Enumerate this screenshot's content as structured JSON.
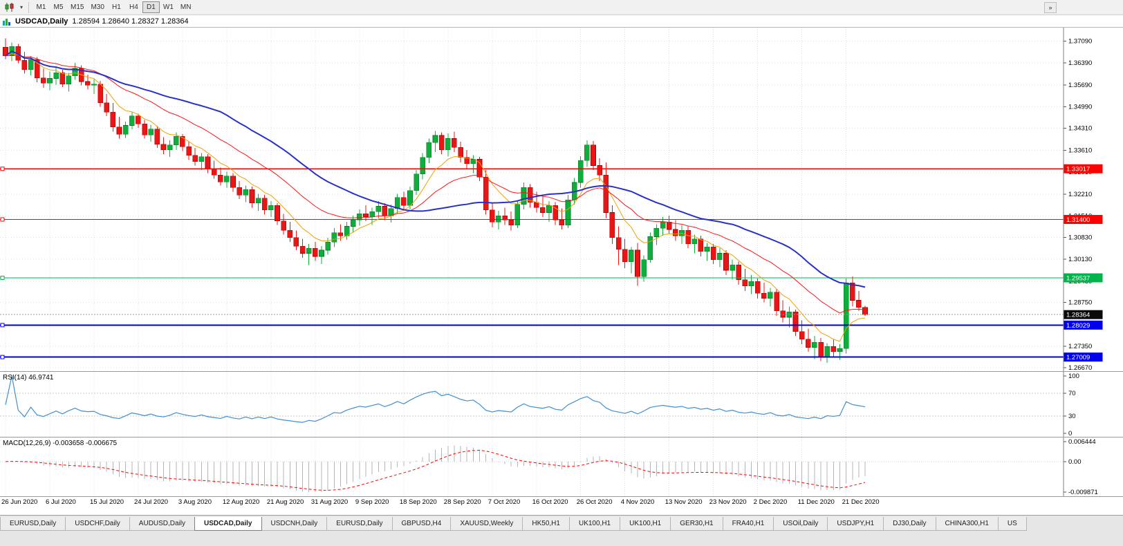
{
  "toolbar": {
    "timeframes": [
      "M1",
      "M5",
      "M15",
      "M30",
      "H1",
      "H4",
      "D1",
      "W1",
      "MN"
    ],
    "active_timeframe": "D1"
  },
  "chart": {
    "title": "USDCAD,Daily",
    "ohlc": "1.28594 1.28640 1.28327 1.28364"
  },
  "colors": {
    "candle_up": "#0ead3c",
    "candle_up_edge": "#077d27",
    "candle_down": "#ea1515",
    "candle_down_edge": "#9c0606",
    "ma_fast": "#f0a000",
    "ma_mid": "#ff1414",
    "ma_slow": "#2730c8",
    "grid": "#e0e0e0",
    "rsi_line": "#3f8fd2",
    "macd_hist": "#b4b4b4",
    "macd_signal": "#ff0000",
    "axis_text": "#000000",
    "separator": "#7f7f7f"
  },
  "tabs": {
    "active_index": 3,
    "items": [
      "EURUSD,Daily",
      "USDCHF,Daily",
      "AUDUSD,Daily",
      "USDCAD,Daily",
      "USDCNH,Daily",
      "EURUSD,Daily",
      "GBPUSD,H4",
      "XAUUSD,Weekly",
      "HK50,H1",
      "UK100,H1",
      "UK100,H1",
      "GER30,H1",
      "FRA40,H1",
      "USOil,Daily",
      "USDJPY,H1",
      "DJ30,Daily",
      "CHINA300,H1",
      "US"
    ]
  },
  "chart_data": {
    "type": "candlestick",
    "symbol": "USDCAD",
    "timeframe": "Daily",
    "ohlc_display": {
      "open": "1.28594",
      "high": "1.28640",
      "low": "1.28327",
      "close": "1.28364"
    },
    "ylim": [
      1.2656,
      1.3752
    ],
    "price_axis_ticks": [
      "1.37090",
      "1.36390",
      "1.35690",
      "1.34990",
      "1.34310",
      "1.33610",
      "1.32910",
      "1.32210",
      "1.31510",
      "1.30830",
      "1.30130",
      "1.29430",
      "1.28750",
      "1.28050",
      "1.27350",
      "1.26670"
    ],
    "date_tick_labels": [
      "26 Jun 2020",
      "6 Jul 2020",
      "15 Jul 2020",
      "24 Jul 2020",
      "3 Aug 2020",
      "12 Aug 2020",
      "21 Aug 2020",
      "31 Aug 2020",
      "9 Sep 2020",
      "18 Sep 2020",
      "28 Sep 2020",
      "7 Oct 2020",
      "16 Oct 2020",
      "26 Oct 2020",
      "4 Nov 2020",
      "13 Nov 2020",
      "23 Nov 2020",
      "2 Dec 2020",
      "11 Dec 2020",
      "21 Dec 2020"
    ],
    "date_tick_indices": [
      0,
      7,
      14,
      21,
      28,
      35,
      42,
      49,
      56,
      63,
      70,
      77,
      84,
      91,
      98,
      105,
      112,
      119,
      126,
      133
    ],
    "horizontal_lines": [
      {
        "value": 1.33017,
        "label": "1.33017",
        "color": "#ff0000",
        "width": 1.2
      },
      {
        "value": 1.314,
        "label": "1.31400",
        "color": "#ff0000",
        "width": 1.2
      },
      {
        "value": 1.29537,
        "label": "1.29537",
        "color": "#00b44b",
        "width": 1.4
      },
      {
        "value": 1.28029,
        "label": "1.28029",
        "color": "#0000ee",
        "width": 2
      },
      {
        "value": 1.27009,
        "label": "1.27009",
        "color": "#0000ee",
        "width": 2
      }
    ],
    "current_price": {
      "value": 1.28364,
      "label": "1.28364",
      "label_bg": "#0a0a0a"
    },
    "moving_averages": [
      {
        "name": "ma-fast",
        "type": "ema",
        "period": 8,
        "color": "#f0a000",
        "width": 1
      },
      {
        "name": "ma-mid",
        "type": "ema",
        "period": 21,
        "color": "#ff1414",
        "width": 1
      },
      {
        "name": "ma-slow",
        "type": "sma",
        "period": 35,
        "color": "#2730c8",
        "width": 2
      }
    ],
    "indicators": [
      {
        "name": "RSI",
        "label": "RSI(14) 46.9741",
        "period": 14,
        "value": 46.9741,
        "levels": [
          70,
          30
        ],
        "axis_labels": [
          "100",
          "70",
          "30",
          "0"
        ],
        "range": [
          0,
          100
        ]
      },
      {
        "name": "MACD",
        "label": "MACD(12,26,9) -0.003658 -0.006675",
        "params": [
          12,
          26,
          9
        ],
        "value": -0.003658,
        "signal_value": -0.006675,
        "axis_labels": [
          "0.006444",
          "0.00",
          "-0.009871"
        ],
        "range": [
          -0.009871,
          0.006444
        ]
      }
    ],
    "candles": [
      [
        1.369,
        1.3718,
        1.3652,
        1.3662
      ],
      [
        1.3662,
        1.3705,
        1.3645,
        1.3692
      ],
      [
        1.3692,
        1.37,
        1.3638,
        1.3648
      ],
      [
        1.3648,
        1.3675,
        1.3605,
        1.3618
      ],
      [
        1.3618,
        1.3662,
        1.36,
        1.365
      ],
      [
        1.365,
        1.3658,
        1.3578,
        1.3592
      ],
      [
        1.3592,
        1.3622,
        1.356,
        1.3575
      ],
      [
        1.3575,
        1.3612,
        1.3552,
        1.359
      ],
      [
        1.359,
        1.3625,
        1.357,
        1.3608
      ],
      [
        1.3608,
        1.3618,
        1.3562,
        1.3572
      ],
      [
        1.3572,
        1.3608,
        1.3548,
        1.3598
      ],
      [
        1.3598,
        1.364,
        1.3585,
        1.3622
      ],
      [
        1.3622,
        1.3632,
        1.3568,
        1.358
      ],
      [
        1.358,
        1.3602,
        1.3555,
        1.3568
      ],
      [
        1.3568,
        1.3588,
        1.354,
        1.3572
      ],
      [
        1.3572,
        1.3582,
        1.35,
        1.3512
      ],
      [
        1.3512,
        1.354,
        1.347,
        1.3482
      ],
      [
        1.3482,
        1.3512,
        1.342,
        1.3435
      ],
      [
        1.3435,
        1.3468,
        1.3398,
        1.3412
      ],
      [
        1.3412,
        1.3452,
        1.34,
        1.344
      ],
      [
        1.344,
        1.3482,
        1.3428,
        1.347
      ],
      [
        1.347,
        1.3478,
        1.3432,
        1.3445
      ],
      [
        1.3445,
        1.3458,
        1.3398,
        1.341
      ],
      [
        1.341,
        1.3442,
        1.3388,
        1.3428
      ],
      [
        1.3428,
        1.3438,
        1.3368,
        1.338
      ],
      [
        1.338,
        1.3402,
        1.3348,
        1.3362
      ],
      [
        1.3362,
        1.3392,
        1.334,
        1.3378
      ],
      [
        1.3378,
        1.3418,
        1.3362,
        1.3405
      ],
      [
        1.3405,
        1.3412,
        1.3358,
        1.3372
      ],
      [
        1.3372,
        1.3388,
        1.333,
        1.3345
      ],
      [
        1.3345,
        1.3368,
        1.3312,
        1.3325
      ],
      [
        1.3325,
        1.3352,
        1.3298,
        1.334
      ],
      [
        1.334,
        1.3348,
        1.3288,
        1.3302
      ],
      [
        1.3302,
        1.3328,
        1.327,
        1.3282
      ],
      [
        1.3282,
        1.3305,
        1.3248,
        1.326
      ],
      [
        1.326,
        1.3292,
        1.3242,
        1.3278
      ],
      [
        1.3278,
        1.3288,
        1.3228,
        1.3242
      ],
      [
        1.3242,
        1.3262,
        1.3205,
        1.3218
      ],
      [
        1.3218,
        1.3248,
        1.3195,
        1.3235
      ],
      [
        1.3235,
        1.3245,
        1.3178,
        1.3192
      ],
      [
        1.3192,
        1.3222,
        1.3168,
        1.3208
      ],
      [
        1.3208,
        1.3218,
        1.3155,
        1.317
      ],
      [
        1.317,
        1.3198,
        1.3148,
        1.3185
      ],
      [
        1.3185,
        1.3192,
        1.3122,
        1.3135
      ],
      [
        1.3135,
        1.3158,
        1.3092,
        1.3105
      ],
      [
        1.3105,
        1.3132,
        1.3068,
        1.3082
      ],
      [
        1.3082,
        1.3105,
        1.3042,
        1.3055
      ],
      [
        1.3055,
        1.3078,
        1.3018,
        1.3032
      ],
      [
        1.3032,
        1.3062,
        1.2995,
        1.3048
      ],
      [
        1.3048,
        1.3068,
        1.3008,
        1.3022
      ],
      [
        1.3022,
        1.3055,
        1.2998,
        1.3042
      ],
      [
        1.3042,
        1.3082,
        1.3028,
        1.3068
      ],
      [
        1.3068,
        1.3112,
        1.3052,
        1.3098
      ],
      [
        1.3098,
        1.3125,
        1.3072,
        1.3088
      ],
      [
        1.3088,
        1.3132,
        1.3075,
        1.3118
      ],
      [
        1.3118,
        1.3152,
        1.3098,
        1.3138
      ],
      [
        1.3138,
        1.3172,
        1.312,
        1.3158
      ],
      [
        1.3158,
        1.3185,
        1.3135,
        1.3148
      ],
      [
        1.3148,
        1.3178,
        1.3122,
        1.3165
      ],
      [
        1.3165,
        1.3198,
        1.3145,
        1.3182
      ],
      [
        1.3182,
        1.3192,
        1.3138,
        1.3152
      ],
      [
        1.3152,
        1.3188,
        1.313,
        1.3175
      ],
      [
        1.3175,
        1.3222,
        1.3158,
        1.321
      ],
      [
        1.321,
        1.3228,
        1.3168,
        1.3185
      ],
      [
        1.3185,
        1.3245,
        1.3172,
        1.3232
      ],
      [
        1.3232,
        1.3298,
        1.3218,
        1.3285
      ],
      [
        1.3285,
        1.3352,
        1.3268,
        1.3338
      ],
      [
        1.3338,
        1.3398,
        1.332,
        1.3385
      ],
      [
        1.3385,
        1.3422,
        1.3355,
        1.3408
      ],
      [
        1.3408,
        1.3418,
        1.3348,
        1.3362
      ],
      [
        1.3362,
        1.3415,
        1.3342,
        1.3398
      ],
      [
        1.3398,
        1.342,
        1.3355,
        1.337
      ],
      [
        1.337,
        1.3388,
        1.3322,
        1.3338
      ],
      [
        1.3338,
        1.3362,
        1.3302,
        1.3318
      ],
      [
        1.3318,
        1.3345,
        1.3288,
        1.3332
      ],
      [
        1.3332,
        1.334,
        1.3262,
        1.3275
      ],
      [
        1.3275,
        1.3298,
        1.3155,
        1.317
      ],
      [
        1.317,
        1.3192,
        1.3115,
        1.3132
      ],
      [
        1.3132,
        1.3168,
        1.3108,
        1.3152
      ],
      [
        1.3152,
        1.3178,
        1.3122,
        1.3138
      ],
      [
        1.3138,
        1.3165,
        1.3105,
        1.3122
      ],
      [
        1.3122,
        1.3202,
        1.3112,
        1.3188
      ],
      [
        1.3188,
        1.3258,
        1.3172,
        1.3242
      ],
      [
        1.3242,
        1.3252,
        1.3178,
        1.3195
      ],
      [
        1.3195,
        1.3228,
        1.3162,
        1.3178
      ],
      [
        1.3178,
        1.3212,
        1.3148,
        1.3162
      ],
      [
        1.3162,
        1.3198,
        1.3132,
        1.3185
      ],
      [
        1.3185,
        1.3195,
        1.3122,
        1.3138
      ],
      [
        1.3138,
        1.3175,
        1.3108,
        1.3122
      ],
      [
        1.3122,
        1.3218,
        1.3112,
        1.3202
      ],
      [
        1.3202,
        1.3272,
        1.3188,
        1.3258
      ],
      [
        1.3258,
        1.3342,
        1.3242,
        1.3328
      ],
      [
        1.3328,
        1.3392,
        1.3308,
        1.3378
      ],
      [
        1.3378,
        1.339,
        1.3298,
        1.3312
      ],
      [
        1.3312,
        1.3335,
        1.3262,
        1.3282
      ],
      [
        1.3282,
        1.3322,
        1.3145,
        1.3162
      ],
      [
        1.3162,
        1.3185,
        1.3062,
        1.3082
      ],
      [
        1.3082,
        1.3118,
        1.2995,
        1.3045
      ],
      [
        1.3045,
        1.3078,
        1.2985,
        1.3005
      ],
      [
        1.3005,
        1.3052,
        1.2968,
        1.3042
      ],
      [
        1.3042,
        1.3065,
        1.2928,
        1.2958
      ],
      [
        1.2958,
        1.3025,
        1.2942,
        1.3012
      ],
      [
        1.3012,
        1.3098,
        1.3002,
        1.3085
      ],
      [
        1.3085,
        1.3125,
        1.3058,
        1.3112
      ],
      [
        1.3112,
        1.3148,
        1.3088,
        1.3132
      ],
      [
        1.3132,
        1.3152,
        1.3095,
        1.3108
      ],
      [
        1.3108,
        1.3138,
        1.3072,
        1.3088
      ],
      [
        1.3088,
        1.3122,
        1.3062,
        1.3105
      ],
      [
        1.3105,
        1.3118,
        1.3048,
        1.3062
      ],
      [
        1.3062,
        1.3092,
        1.3032,
        1.3078
      ],
      [
        1.3078,
        1.3088,
        1.3022,
        1.3038
      ],
      [
        1.3038,
        1.3065,
        1.3008,
        1.3052
      ],
      [
        1.3052,
        1.3062,
        1.2998,
        1.3012
      ],
      [
        1.3012,
        1.3048,
        1.2988,
        1.3032
      ],
      [
        1.3032,
        1.3042,
        1.2962,
        1.2978
      ],
      [
        1.2978,
        1.3012,
        1.2948,
        1.2995
      ],
      [
        1.2995,
        1.3005,
        1.2932,
        1.2948
      ],
      [
        1.2948,
        1.2982,
        1.2912,
        1.2928
      ],
      [
        1.2928,
        1.2962,
        1.2902,
        1.2942
      ],
      [
        1.2942,
        1.2952,
        1.2888,
        1.2905
      ],
      [
        1.2905,
        1.2938,
        1.2875,
        1.2888
      ],
      [
        1.2888,
        1.2922,
        1.2862,
        1.2908
      ],
      [
        1.2908,
        1.2918,
        1.2832,
        1.2848
      ],
      [
        1.2848,
        1.2882,
        1.2812,
        1.2828
      ],
      [
        1.2828,
        1.2862,
        1.2795,
        1.2845
      ],
      [
        1.2845,
        1.2852,
        1.2768,
        1.2782
      ],
      [
        1.2782,
        1.2818,
        1.2742,
        1.2758
      ],
      [
        1.2758,
        1.2792,
        1.2718,
        1.2732
      ],
      [
        1.2732,
        1.2768,
        1.2695,
        1.2748
      ],
      [
        1.2748,
        1.2762,
        1.2688,
        1.2702
      ],
      [
        1.2702,
        1.2745,
        1.2682,
        1.2735
      ],
      [
        1.2735,
        1.2758,
        1.2702,
        1.2718
      ],
      [
        1.2718,
        1.2742,
        1.2692,
        1.2728
      ],
      [
        1.2728,
        1.2952,
        1.2712,
        1.2938
      ],
      [
        1.2938,
        1.2958,
        1.2862,
        1.2882
      ],
      [
        1.2882,
        1.2912,
        1.2848,
        1.2859
      ],
      [
        1.28594,
        1.2864,
        1.28327,
        1.28364
      ]
    ]
  }
}
